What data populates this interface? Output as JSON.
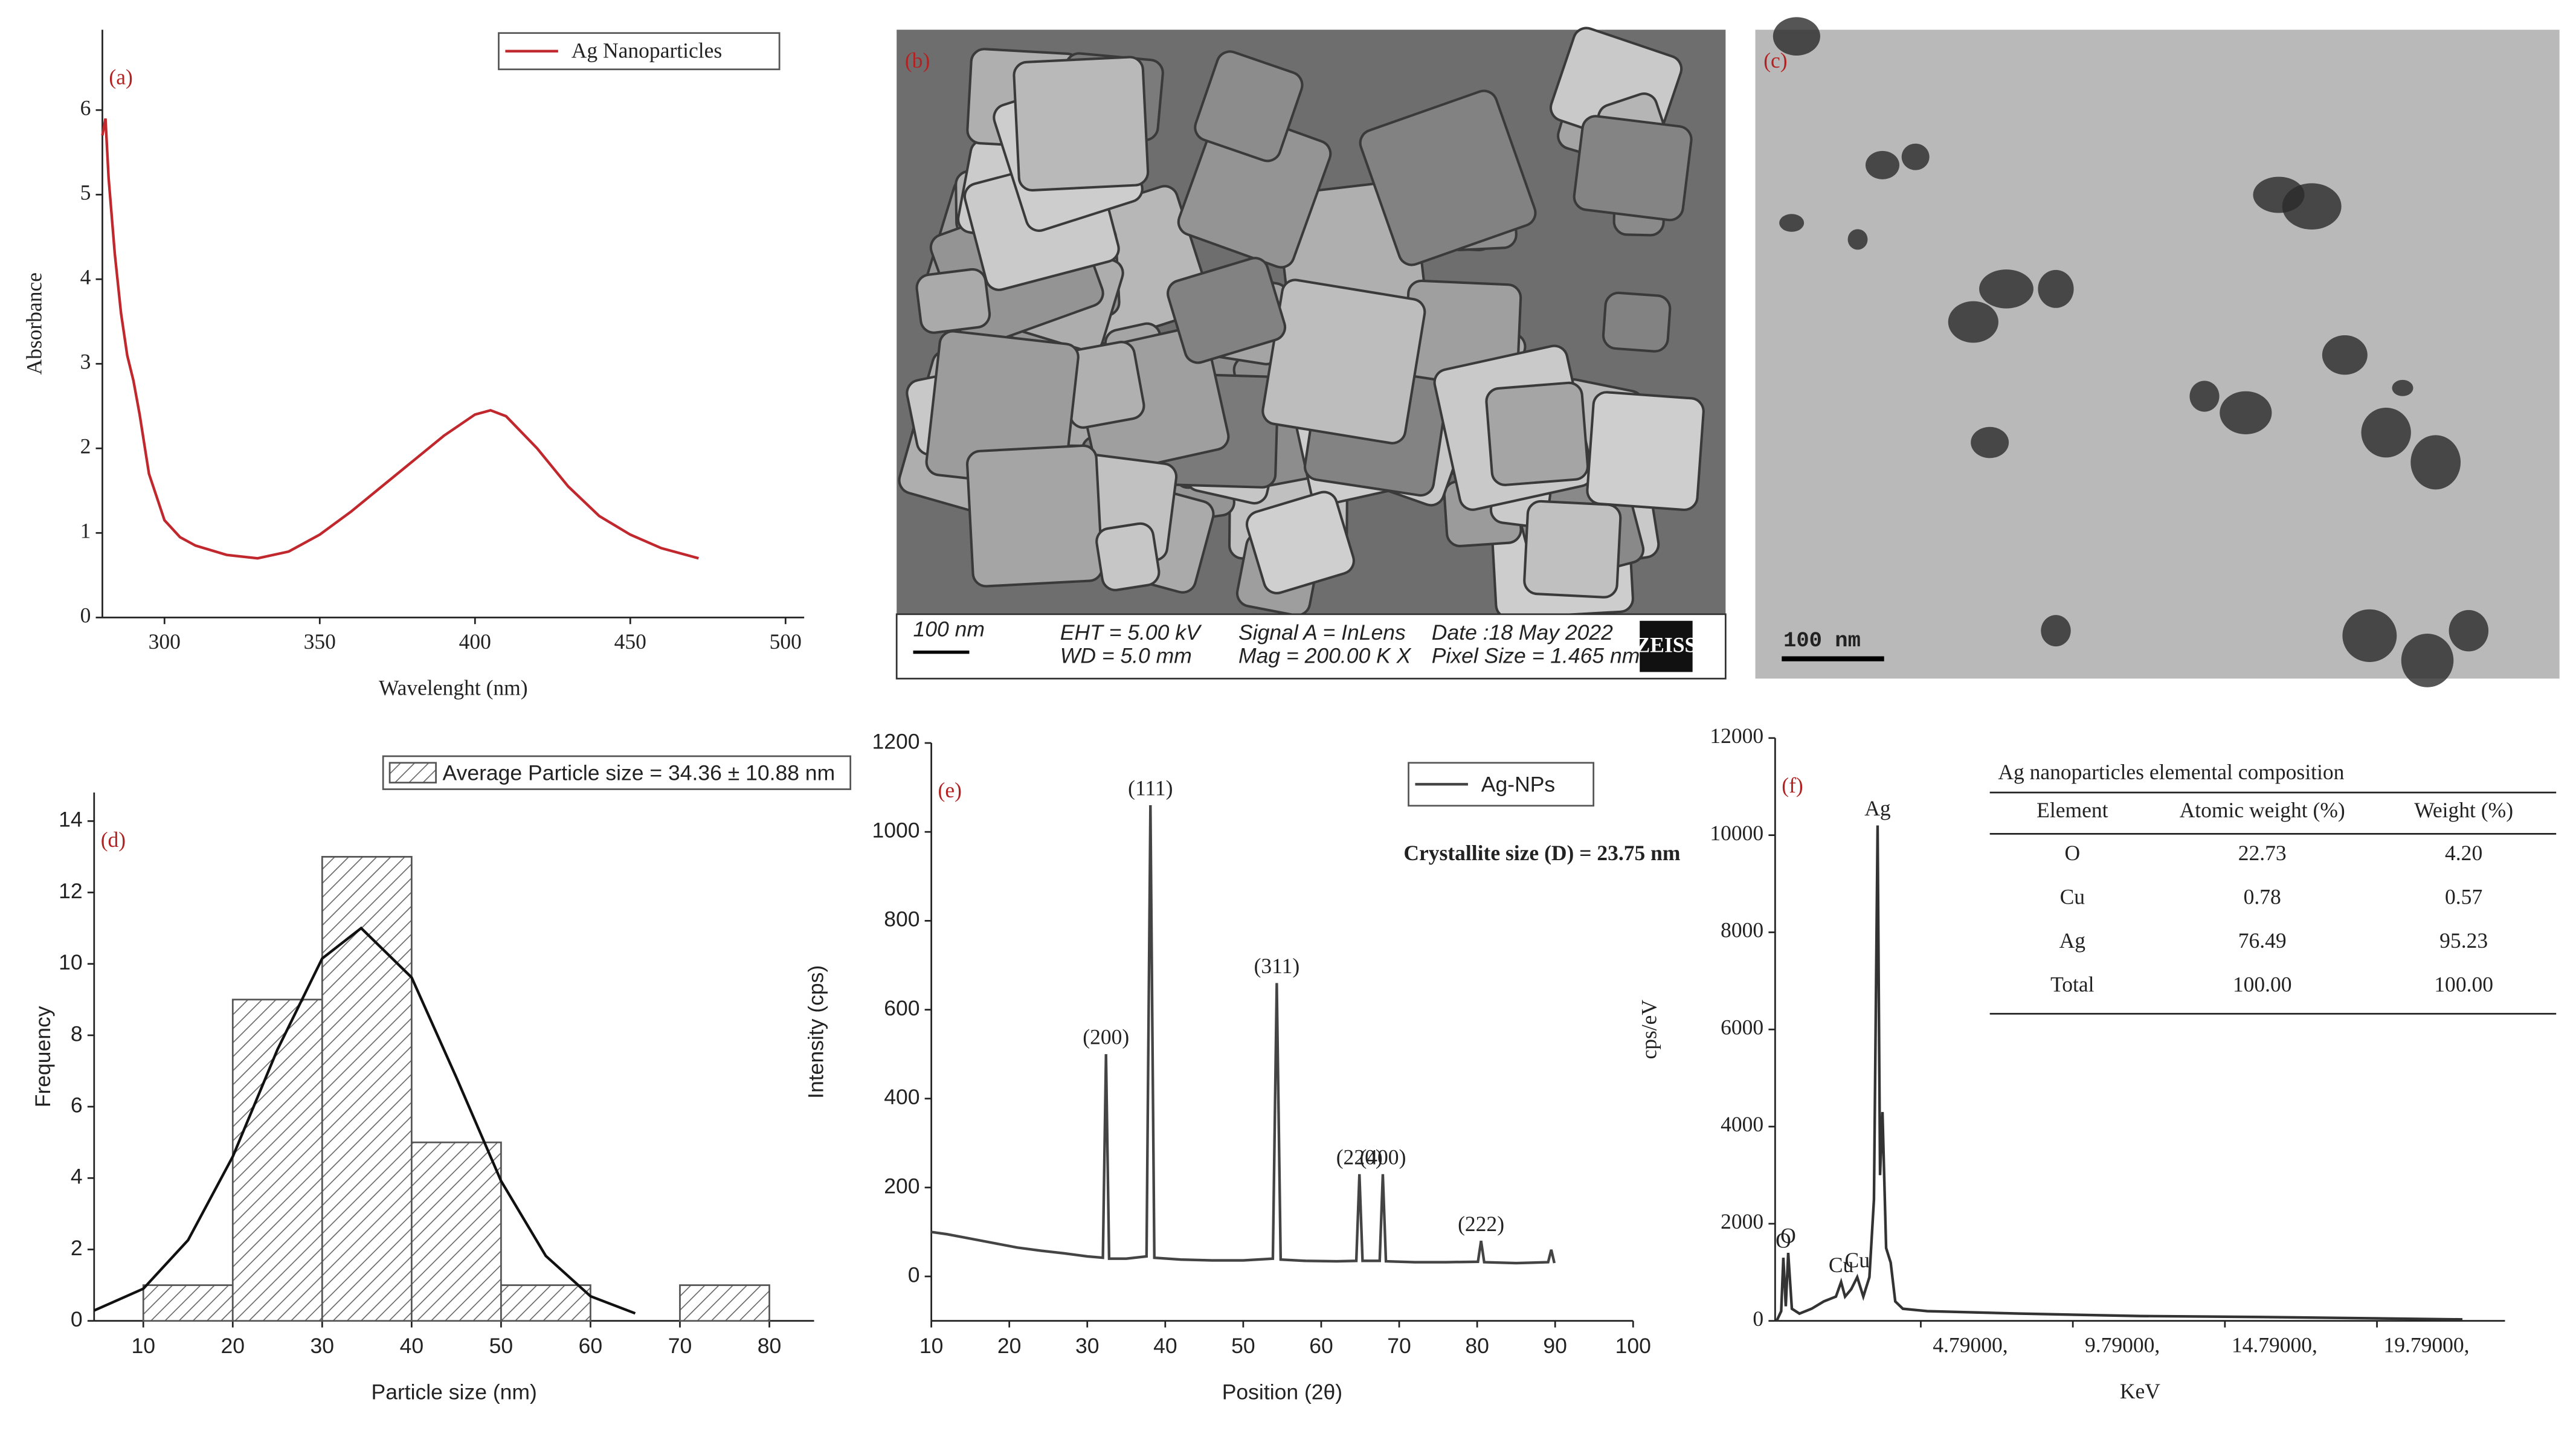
{
  "chart_data": [
    {
      "type": "line",
      "panel_label": "(a)",
      "xlabel": "Wavelenght (nm)",
      "ylabel": "Absorbance",
      "xlim": [
        280,
        506
      ],
      "ylim": [
        0,
        6.95
      ],
      "xticks": [
        300,
        350,
        400,
        450,
        500
      ],
      "yticks": [
        0,
        1,
        2,
        3,
        4,
        5,
        6
      ],
      "x": [
        280,
        281,
        282,
        284,
        286,
        288,
        290,
        292,
        295,
        300,
        305,
        310,
        320,
        330,
        340,
        350,
        360,
        370,
        380,
        390,
        400,
        405,
        410,
        420,
        430,
        440,
        450,
        460,
        472
      ],
      "series": [
        {
          "name": "Ag Nanoparticles",
          "color": "#c0282d",
          "values": [
            5.7,
            5.9,
            5.2,
            4.3,
            3.6,
            3.1,
            2.8,
            2.4,
            1.7,
            1.15,
            0.95,
            0.85,
            0.74,
            0.7,
            0.78,
            0.98,
            1.25,
            1.55,
            1.85,
            2.15,
            2.4,
            2.45,
            2.38,
            2.0,
            1.55,
            1.2,
            0.98,
            0.82,
            0.7
          ]
        }
      ]
    },
    {
      "type": "histogram",
      "panel_label": "(d)",
      "xlabel": "Particle size (nm)",
      "ylabel": "Frequency",
      "xlim": [
        4.5,
        85
      ],
      "ylim": [
        0,
        14.8
      ],
      "xticks": [
        10,
        20,
        30,
        40,
        50,
        60,
        70,
        80
      ],
      "yticks": [
        0,
        2,
        4,
        6,
        8,
        10,
        12,
        14
      ],
      "bins": [
        10,
        20,
        30,
        40,
        50,
        60,
        70,
        80
      ],
      "series": [
        {
          "name": "Average Particle size = 34.36 ± 10.88 nm",
          "color": "#555555",
          "values": [
            1,
            9,
            13,
            5,
            1,
            0,
            1
          ]
        }
      ],
      "curve": {
        "color": "#111111",
        "x": [
          4.5,
          10,
          15,
          20,
          25,
          30,
          34.36,
          40,
          45,
          50,
          55,
          60,
          65
        ],
        "values": [
          0.29,
          0.9,
          2.26,
          4.6,
          7.6,
          10.15,
          11,
          9.62,
          6.82,
          3.92,
          1.82,
          0.69,
          0.21
        ]
      }
    },
    {
      "type": "line",
      "panel_label": "(e)",
      "xlabel": "Position (2θ)",
      "ylabel": "Intensity (cps)",
      "note": "Crystallite size (D) = 23.75 nm",
      "xlim": [
        10,
        100
      ],
      "ylim": [
        -100,
        1200
      ],
      "xticks": [
        10,
        20,
        30,
        40,
        50,
        60,
        70,
        80,
        90,
        100
      ],
      "yticks": [
        0,
        200,
        400,
        600,
        800,
        1000,
        1200
      ],
      "x": [
        10,
        12,
        15,
        18,
        21,
        24,
        27,
        30,
        32,
        32.4,
        32.8,
        35,
        37.6,
        38.1,
        38.6,
        42,
        46,
        50,
        53.8,
        54.3,
        54.8,
        58,
        62,
        64.5,
        64.9,
        65.3,
        67.5,
        67.9,
        68.3,
        72,
        76,
        80.1,
        80.5,
        80.9,
        85,
        89.1,
        89.5,
        89.9
      ],
      "series": [
        {
          "name": "Ag-NPs",
          "color": "#444444",
          "values": [
            100,
            95,
            85,
            75,
            65,
            58,
            52,
            45,
            42,
            500,
            40,
            40,
            45,
            1060,
            42,
            38,
            36,
            36,
            40,
            660,
            38,
            35,
            34,
            35,
            230,
            35,
            35,
            230,
            34,
            32,
            32,
            33,
            80,
            32,
            30,
            32,
            60,
            30
          ]
        }
      ],
      "annotations": [
        {
          "text": "(200)",
          "x": 32.4,
          "y": 500
        },
        {
          "text": "(111)",
          "x": 38.1,
          "y": 1060
        },
        {
          "text": "(311)",
          "x": 54.3,
          "y": 660
        },
        {
          "text": "(220)",
          "x": 64.9,
          "y": 230
        },
        {
          "text": "(400)",
          "x": 67.9,
          "y": 230
        },
        {
          "text": "(222)",
          "x": 80.5,
          "y": 80
        }
      ]
    },
    {
      "type": "line",
      "panel_label": "(f)",
      "xlabel": "KeV",
      "ylabel": "cps/eV",
      "xlim": [
        0,
        24
      ],
      "ylim": [
        0,
        12000
      ],
      "xticks": [
        {
          "value": 4.79,
          "label": "4.79000,"
        },
        {
          "value": 9.79,
          "label": "9.79000,"
        },
        {
          "value": 14.79,
          "label": "14.79000,"
        },
        {
          "value": 19.79,
          "label": "19.79000,"
        }
      ],
      "yticks": [
        0,
        2000,
        4000,
        6000,
        8000,
        10000,
        12000
      ],
      "x": [
        0.05,
        0.2,
        0.27,
        0.35,
        0.43,
        0.55,
        0.8,
        1.2,
        1.6,
        2.0,
        2.17,
        2.3,
        2.5,
        2.7,
        2.9,
        3.1,
        3.25,
        3.37,
        3.45,
        3.53,
        3.65,
        3.8,
        3.95,
        4.2,
        5,
        8,
        12,
        16,
        20,
        22.6
      ],
      "series": [
        {
          "name": null,
          "color": "#333333",
          "values": [
            0,
            200,
            1300,
            300,
            1400,
            250,
            150,
            250,
            400,
            500,
            800,
            500,
            650,
            900,
            500,
            900,
            2500,
            10200,
            3000,
            4300,
            1500,
            1200,
            400,
            250,
            200,
            150,
            100,
            80,
            50,
            30
          ]
        }
      ],
      "annotations": [
        {
          "text": "O",
          "x": 0.27,
          "y": 1300
        },
        {
          "text": "O",
          "x": 0.43,
          "y": 1400
        },
        {
          "text": "Cu",
          "x": 2.17,
          "y": 800
        },
        {
          "text": "Cu",
          "x": 2.7,
          "y": 900
        },
        {
          "text": "Ag",
          "x": 3.37,
          "y": 10200
        }
      ],
      "table": {
        "title": "Ag nanoparticles elemental composition",
        "header": [
          "Element",
          "Atomic weight (%)",
          "Weight (%)"
        ],
        "rows": [
          [
            "O",
            "22.73",
            "4.20"
          ],
          [
            "Cu",
            "0.78",
            "0.57"
          ],
          [
            "Ag",
            "76.49",
            "95.23"
          ],
          [
            "Total",
            "100.00",
            "100.00"
          ]
        ]
      }
    }
  ],
  "images": [
    {
      "panel_label": "(b)",
      "scale_bar": "100 nm",
      "info": [
        "EHT = 5.00 kV",
        "WD = 5.0 mm",
        "Signal A = InLens",
        "Mag = 200.00 K X",
        "Date :18 May 2022",
        "Pixel Size = 1.465 nm"
      ],
      "brand": "ZEISS"
    },
    {
      "panel_label": "(c)",
      "scale_bar": "100 nm"
    }
  ]
}
